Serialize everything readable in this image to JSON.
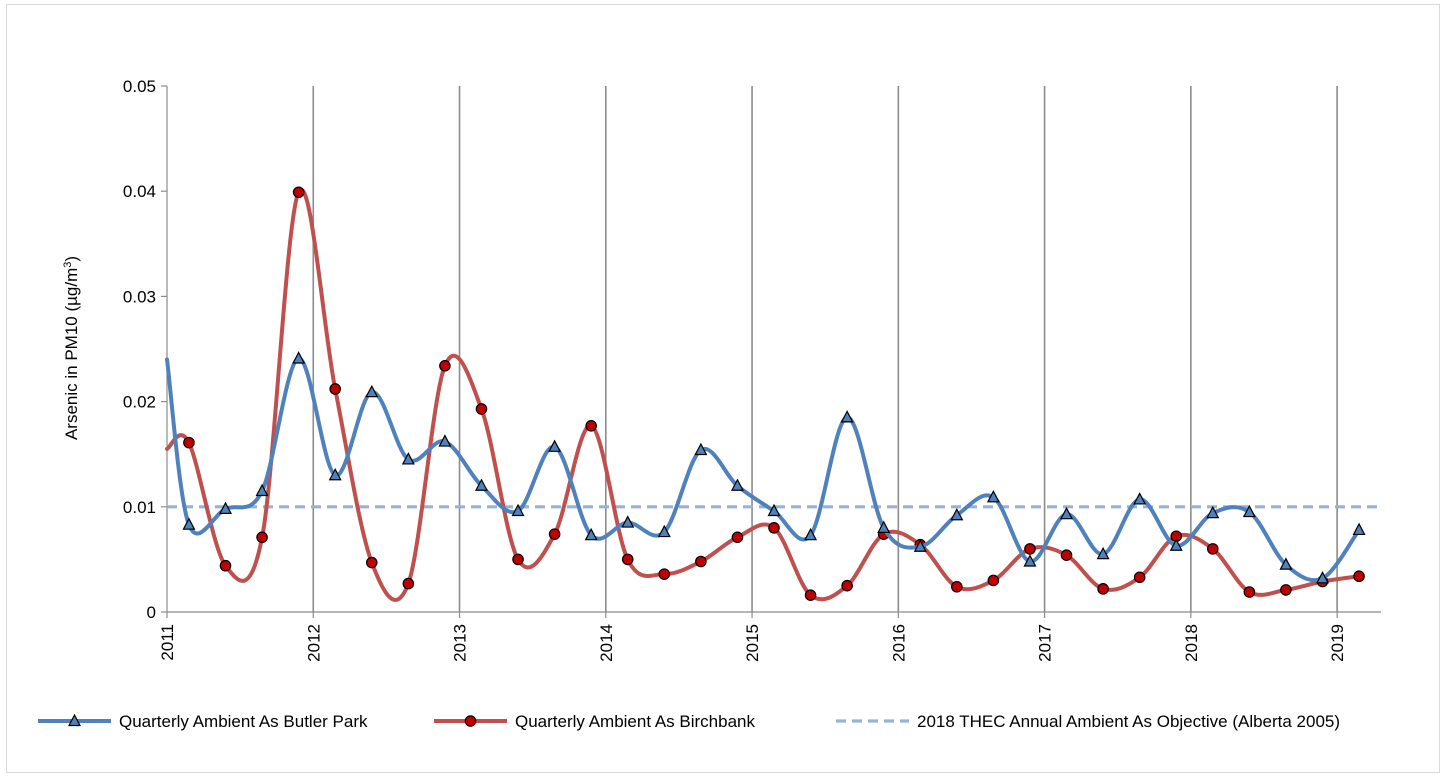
{
  "chart_data": {
    "type": "line",
    "title": "",
    "ylabel_main": "Arsenic in PM10 (µg/m",
    "ylabel_sup": "3",
    "ylabel_close": ")",
    "ylim": [
      0,
      0.05
    ],
    "xlim": [
      2011,
      2019.3
    ],
    "yticks": [
      0,
      0.01,
      0.02,
      0.03,
      0.04,
      0.05
    ],
    "ytick_labels": [
      "0",
      "0.01",
      "0.02",
      "0.03",
      "0.04",
      "0.05"
    ],
    "xticks": [
      2011,
      2012,
      2013,
      2014,
      2015,
      2016,
      2017,
      2018,
      2019
    ],
    "xtick_labels": [
      "2011",
      "2012",
      "2013",
      "2014",
      "2015",
      "2016",
      "2017",
      "2018",
      "2019"
    ],
    "grid": "vertical",
    "legend_position": "bottom",
    "series": [
      {
        "name": "Quarterly Ambient As Butler Park",
        "color": "#4f81bd",
        "marker": "triangle",
        "start": [
          2011.0,
          0.024
        ],
        "x": [
          2011.15,
          2011.4,
          2011.65,
          2011.9,
          2012.15,
          2012.4,
          2012.65,
          2012.9,
          2013.15,
          2013.4,
          2013.65,
          2013.9,
          2014.15,
          2014.4,
          2014.65,
          2014.9,
          2015.15,
          2015.4,
          2015.65,
          2015.9,
          2016.15,
          2016.4,
          2016.65,
          2016.9,
          2017.15,
          2017.4,
          2017.65,
          2017.9,
          2018.15,
          2018.4,
          2018.65,
          2018.9,
          2019.15
        ],
        "values": [
          0.0083,
          0.0098,
          0.0115,
          0.0241,
          0.013,
          0.0209,
          0.0145,
          0.0162,
          0.012,
          0.0096,
          0.0157,
          0.0073,
          0.0085,
          0.0076,
          0.0154,
          0.012,
          0.0096,
          0.0073,
          0.0185,
          0.008,
          0.0062,
          0.0092,
          0.0109,
          0.0048,
          0.0093,
          0.0055,
          0.0107,
          0.0063,
          0.0094,
          0.0095,
          0.0045,
          0.0032,
          0.0078
        ]
      },
      {
        "name": "Quarterly Ambient As Birchbank",
        "color": "#c0504d",
        "marker": "circle",
        "start": [
          2011.0,
          0.0155
        ],
        "x": [
          2011.15,
          2011.4,
          2011.65,
          2011.9,
          2012.15,
          2012.4,
          2012.65,
          2012.9,
          2013.15,
          2013.4,
          2013.65,
          2013.9,
          2014.15,
          2014.4,
          2014.65,
          2014.9,
          2015.15,
          2015.4,
          2015.65,
          2015.9,
          2016.15,
          2016.4,
          2016.65,
          2016.9,
          2017.15,
          2017.4,
          2017.65,
          2017.9,
          2018.15,
          2018.4,
          2018.65,
          2018.9,
          2019.15
        ],
        "values": [
          0.0161,
          0.0044,
          0.0071,
          0.0399,
          0.0212,
          0.0047,
          0.0027,
          0.0234,
          0.0193,
          0.005,
          0.0074,
          0.0177,
          0.005,
          0.0036,
          0.0048,
          0.0071,
          0.008,
          0.0016,
          0.0025,
          0.0074,
          0.0064,
          0.0024,
          0.003,
          0.006,
          0.0054,
          0.0022,
          0.0033,
          0.0072,
          0.006,
          0.0019,
          0.0021,
          0.0029,
          0.0034
        ]
      },
      {
        "name": "2018 THEC Annual Ambient As Objective (Alberta 2005)",
        "color": "#95b3d7",
        "marker": "none",
        "style": "dashed",
        "x": [
          2011.0,
          2019.3
        ],
        "values": [
          0.01,
          0.01
        ]
      }
    ]
  }
}
